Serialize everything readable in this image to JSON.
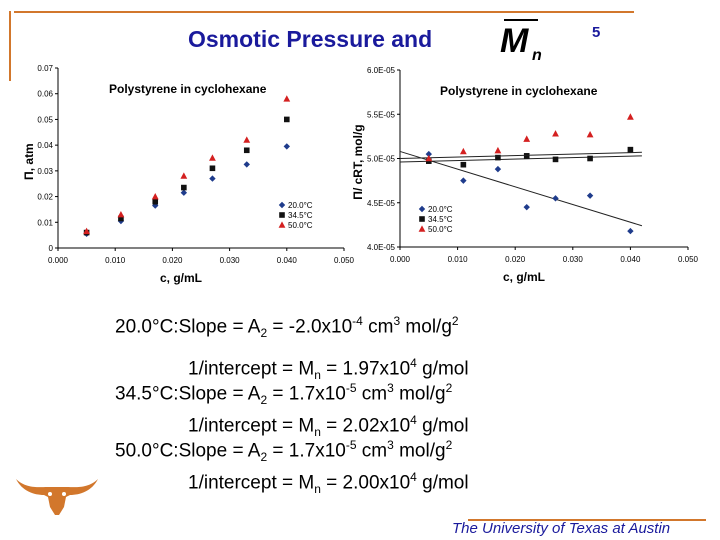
{
  "slide": {
    "title": "Osmotic Pressure and",
    "title_symbol": "M",
    "title_symbol_sub": "n",
    "number": "5",
    "accent_color": "#d2772c",
    "title_color": "#1a1a9c",
    "footer": "The University of Texas at Austin",
    "logo": "longhorn-logo"
  },
  "chart_data": [
    {
      "type": "scatter",
      "title": "Polystyrene in cyclohexane",
      "xlabel": "c, g/mL",
      "ylabel": "Π, atm",
      "xlim": [
        0,
        0.05
      ],
      "ylim": [
        0,
        0.07
      ],
      "x_ticks": [
        "0.000",
        "0.010",
        "0.020",
        "0.030",
        "0.040",
        "0.050"
      ],
      "y_ticks": [
        "0",
        "0.01",
        "0.02",
        "0.03",
        "0.04",
        "0.05",
        "0.06",
        "0.07"
      ],
      "grid": false,
      "legend": "bottom-right",
      "series": [
        {
          "name": "20.0°C",
          "marker": "diamond",
          "color": "#1f3c8c",
          "x": [
            0.005,
            0.011,
            0.017,
            0.022,
            0.027,
            0.033,
            0.04
          ],
          "y": [
            0.0055,
            0.0105,
            0.0165,
            0.0215,
            0.027,
            0.0325,
            0.0395
          ]
        },
        {
          "name": "34.5°C",
          "marker": "square",
          "color": "#111111",
          "x": [
            0.005,
            0.011,
            0.017,
            0.022,
            0.027,
            0.033,
            0.04
          ],
          "y": [
            0.006,
            0.0115,
            0.018,
            0.0235,
            0.031,
            0.038,
            0.05
          ]
        },
        {
          "name": "50.0°C",
          "marker": "triangle",
          "color": "#d42020",
          "x": [
            0.005,
            0.011,
            0.017,
            0.022,
            0.027,
            0.033,
            0.04
          ],
          "y": [
            0.0065,
            0.013,
            0.02,
            0.028,
            0.035,
            0.042,
            0.058
          ]
        }
      ]
    },
    {
      "type": "scatter",
      "title": "Polystyrene in cyclohexane",
      "xlabel": "c, g/mL",
      "ylabel": "Π/ cRT, mol/g",
      "xlim": [
        0,
        0.05
      ],
      "ylim": [
        4e-05,
        6e-05
      ],
      "x_ticks": [
        "0.000",
        "0.010",
        "0.020",
        "0.030",
        "0.040",
        "0.050"
      ],
      "y_ticks": [
        "4.0E-05",
        "4.5E-05",
        "5.0E-05",
        "5.5E-05",
        "6.0E-05"
      ],
      "grid": false,
      "legend": "bottom-left",
      "series": [
        {
          "name": "20.0°C",
          "marker": "diamond",
          "color": "#1f3c8c",
          "x": [
            0.005,
            0.011,
            0.017,
            0.022,
            0.027,
            0.033,
            0.04
          ],
          "y": [
            5.05e-05,
            4.75e-05,
            4.88e-05,
            4.45e-05,
            4.55e-05,
            4.58e-05,
            4.18e-05
          ],
          "trend": [
            [
              0.0,
              5.08e-05
            ],
            [
              0.042,
              4.24e-05
            ]
          ]
        },
        {
          "name": "34.5°C",
          "marker": "square",
          "color": "#111111",
          "x": [
            0.005,
            0.011,
            0.017,
            0.022,
            0.027,
            0.033,
            0.04
          ],
          "y": [
            4.97e-05,
            4.93e-05,
            5.01e-05,
            5.03e-05,
            4.99e-05,
            5e-05,
            5.1e-05
          ],
          "trend": [
            [
              0.0,
              4.96e-05
            ],
            [
              0.042,
              5.03e-05
            ]
          ]
        },
        {
          "name": "50.0°C",
          "marker": "triangle",
          "color": "#d42020",
          "x": [
            0.005,
            0.011,
            0.017,
            0.022,
            0.027,
            0.033,
            0.04
          ],
          "y": [
            5e-05,
            5.08e-05,
            5.09e-05,
            5.22e-05,
            5.28e-05,
            5.27e-05,
            5.47e-05
          ],
          "trend": [
            [
              0.0,
              5e-05
            ],
            [
              0.042,
              5.07e-05
            ]
          ]
        }
      ]
    }
  ],
  "results": [
    {
      "label": "20.0°C:Slope = A",
      "sub": "2",
      "mid": " = -2.0x10",
      "exp": "-4",
      "unit": " cm",
      "unit_exp": "3",
      "unit_tail": " mol/g",
      "unit_tail_exp": "2"
    },
    {
      "label": "1/intercept = M",
      "sub": "n",
      "mid": " = 1.97x10",
      "exp": "4",
      "unit": " g/mol"
    },
    {
      "label": "34.5°C:Slope = A",
      "sub": "2",
      "mid": " =  1.7x10",
      "exp": "-5",
      "unit": " cm",
      "unit_exp": "3",
      "unit_tail": " mol/g",
      "unit_tail_exp": "2"
    },
    {
      "label": "1/intercept = M",
      "sub": "n",
      "mid": " = 2.02x10",
      "exp": "4",
      "unit": " g/mol"
    },
    {
      "label": "50.0°C:Slope = A",
      "sub": "2",
      "mid": " =  1.7x10",
      "exp": "-5",
      "unit": " cm",
      "unit_exp": "3",
      "unit_tail": " mol/g",
      "unit_tail_exp": "2"
    },
    {
      "label": "1/intercept = M",
      "sub": "n",
      "mid": " = 2.00x10",
      "exp": "4",
      "unit": " g/mol"
    }
  ]
}
